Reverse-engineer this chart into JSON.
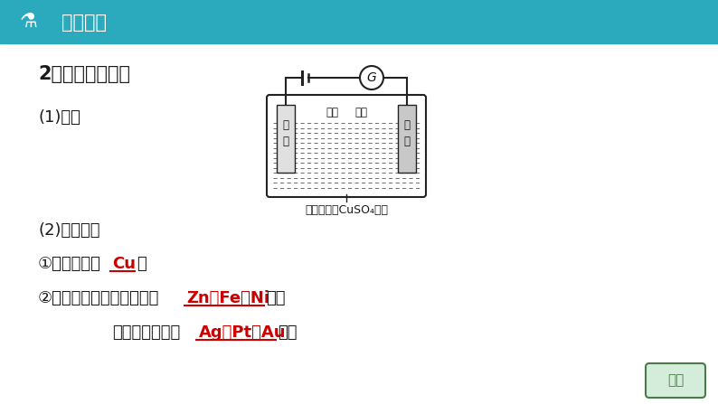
{
  "bg_color": "#ffffff",
  "header_color": "#2BAABD",
  "header_text": "基础认识",
  "header_text_color": "#ffffff",
  "title_text": "2．铜的电解精炼",
  "title_color": "#1a1a1a",
  "section1_text": "(1)装置",
  "section2_text": "(2)粗铜成分",
  "line1_prefix": "①主要成分：",
  "line1_answer": "Cu",
  "line1_suffix": "。",
  "line2_prefix": "②杂质金属：比铜活泼的有",
  "line2_answer": "Zn、Fe、Ni",
  "line2_suffix": "等。",
  "line3_prefix": "比铜不活泼的有",
  "line3_answer": "Ag、Pt、Au",
  "line3_suffix": "等。",
  "answer_color": "#cc0000",
  "underline_color": "#cc0000",
  "diagram_label": "硫酸酸化的CuSO₄溶液",
  "cathode_label": "阴极",
  "anode_label": "阳极",
  "left_electrode_label1": "纯",
  "left_electrode_label2": "铜",
  "right_electrode_label1": "粗",
  "right_electrode_label2": "铜",
  "galvanometer_label": "G",
  "body_text_color": "#1a1a1a",
  "diagram_text_color": "#1a1a1a",
  "answer_badge_color": "#4a7a4a",
  "answer_badge_bg": "#d4edda",
  "answer_badge_text": "答案",
  "figw": 7.94,
  "figh": 4.47,
  "dpi": 100
}
